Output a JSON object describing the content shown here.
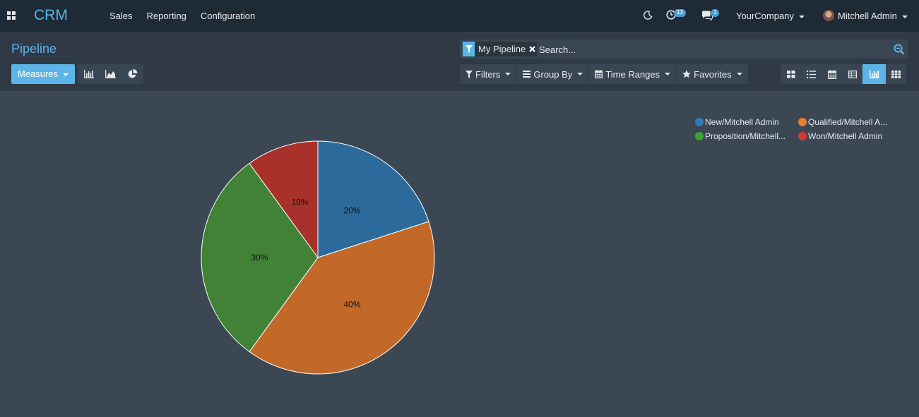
{
  "navbar": {
    "brand": "CRM",
    "menu": [
      "Sales",
      "Reporting",
      "Configuration"
    ],
    "activity_count": "13",
    "message_count": "1",
    "company": "YourCompany",
    "user": "Mitchell Admin"
  },
  "control": {
    "title": "Pipeline",
    "facet_label": "My Pipeline",
    "search_placeholder": "Search...",
    "measures_label": "Measures",
    "filters_label": "Filters",
    "groupby_label": "Group By",
    "timeranges_label": "Time Ranges",
    "favorites_label": "Favorites",
    "active_view": "graph"
  },
  "colors": {
    "accent": "#5db4e6",
    "new": "#2c6a9c",
    "qualified": "#c2692a",
    "proposition": "#428236",
    "won": "#a8322b"
  },
  "chart_data": {
    "type": "pie",
    "legend_position": "top-right",
    "slices": [
      {
        "name": "New/Mitchell Admin",
        "legend_label": "New/Mitchell Admin",
        "value": 20,
        "label": "20%",
        "color": "#2c6a9c",
        "legend_color": "#2f7abb"
      },
      {
        "name": "Qualified/Mitchell Admin",
        "legend_label": "Qualified/Mitchell A...",
        "value": 40,
        "label": "40%",
        "color": "#c2692a",
        "legend_color": "#ee7b32"
      },
      {
        "name": "Proposition/Mitchell Admin",
        "legend_label": "Proposition/Mitchell...",
        "value": 30,
        "label": "30%",
        "color": "#428236",
        "legend_color": "#40a230"
      },
      {
        "name": "Won/Mitchell Admin",
        "legend_label": "Won/Mitchell Admin",
        "value": 10,
        "label": "10%",
        "color": "#a8322b",
        "legend_color": "#d63a2e"
      }
    ]
  }
}
